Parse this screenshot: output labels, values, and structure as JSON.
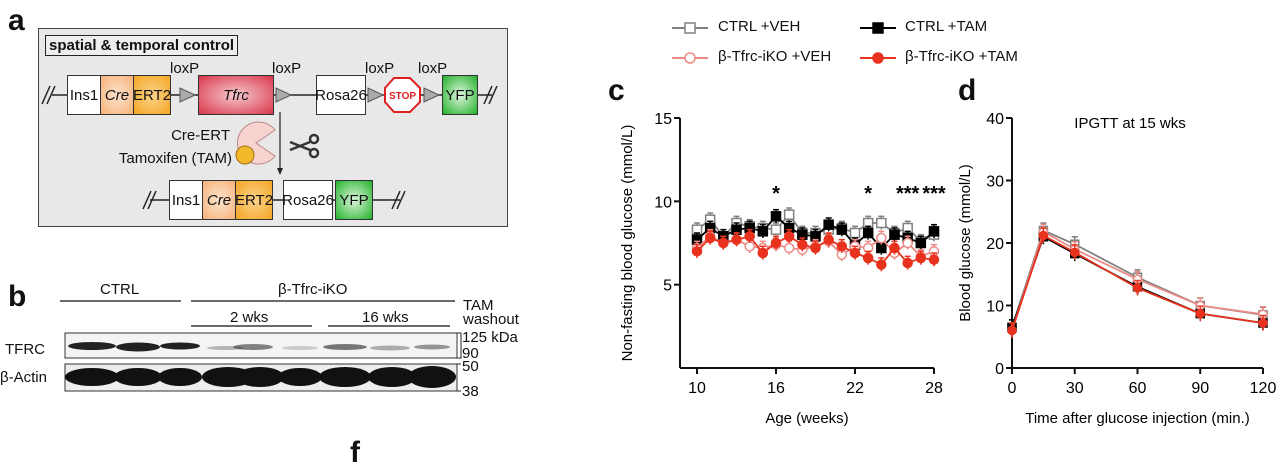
{
  "panel_labels": {
    "a": "a",
    "b": "b",
    "c": "c",
    "d": "d",
    "f": "f"
  },
  "panel_a": {
    "title": "spatial & temporal control",
    "loxp": "loxP",
    "ins1": "Ins1",
    "cre": "Cre",
    "ert2": "ERT2",
    "tfrc": "Tfrc",
    "rosa26": "Rosa26",
    "stop": "STOP",
    "yfp": "YFP",
    "cre_ert": "Cre-ERT",
    "tamoxifen": "Tamoxifen (TAM)",
    "colors": {
      "background": "#e8e8e8",
      "cre": "#f6b27a",
      "ert2": "#f5a623",
      "tfrc": "#d9364a",
      "stop": "#e02020",
      "yfp": "#22b22a",
      "enzyme": "#f7d3cf",
      "tamoxifen": "#f4b82c"
    }
  },
  "panel_b": {
    "ctrl": "CTRL",
    "ko": "β-Tfrc-iKO",
    "tam_washout_1": "TAM",
    "tam_washout_2": "washout",
    "wk2": "2 wks",
    "wk16": "16 wks",
    "row1": "TFRC",
    "row2": "β-Actin",
    "mw": [
      "125 kDa",
      "90",
      "50",
      "38"
    ]
  },
  "legend": [
    {
      "label": "CTRL +VEH",
      "color": "#808080",
      "marker": "open-square"
    },
    {
      "label": "CTRL +TAM",
      "color": "#000000",
      "marker": "filled-square"
    },
    {
      "label": "β-Tfrc-iKO +VEH",
      "color": "#ec8a86",
      "marker": "open-circle"
    },
    {
      "label": "β-Tfrc-iKO +TAM",
      "color": "#e8321e",
      "marker": "filled-circle"
    }
  ],
  "chart_data": [
    {
      "type": "line",
      "panel": "c",
      "xlabel": "Age (weeks)",
      "ylabel": "Non-fasting blood glucose (mmol/L)",
      "xlim": [
        10,
        28
      ],
      "ylim": [
        0,
        15
      ],
      "xticks": [
        "10",
        "16",
        "22",
        "28"
      ],
      "yticks": [
        "5",
        "10",
        "15"
      ],
      "x": [
        10,
        11,
        12,
        13,
        14,
        15,
        16,
        17,
        18,
        19,
        20,
        21,
        22,
        23,
        24,
        25,
        26,
        27,
        28
      ],
      "series": [
        {
          "name": "CTRL +VEH",
          "values": [
            8.3,
            8.9,
            7.9,
            8.7,
            8.5,
            8.4,
            8.3,
            9.2,
            8.1,
            8.1,
            8.3,
            8.4,
            8.1,
            8.7,
            8.7,
            8.1,
            8.4,
            7.6,
            8.0
          ]
        },
        {
          "name": "CTRL +TAM",
          "values": [
            7.7,
            8.4,
            7.9,
            8.3,
            8.4,
            8.2,
            9.1,
            8.4,
            8.0,
            7.9,
            8.6,
            8.3,
            7.4,
            8.1,
            7.2,
            8.0,
            7.8,
            7.5,
            8.2
          ]
        },
        {
          "name": "β-Tfrc-iKO +VEH",
          "values": [
            7.2,
            7.9,
            7.5,
            7.7,
            7.3,
            7.2,
            7.4,
            7.2,
            7.1,
            7.3,
            7.6,
            6.8,
            7.3,
            7.2,
            7.8,
            6.9,
            7.5,
            6.7,
            7.0
          ]
        },
        {
          "name": "β-Tfrc-iKO +TAM",
          "values": [
            7.0,
            7.8,
            7.5,
            7.7,
            7.9,
            6.9,
            7.5,
            7.9,
            7.4,
            7.2,
            7.7,
            7.3,
            6.9,
            6.6,
            6.2,
            7.2,
            6.3,
            6.6,
            6.5
          ]
        }
      ],
      "annotations": [
        {
          "x": 16,
          "text": "*"
        },
        {
          "x": 23,
          "text": "*"
        },
        {
          "x": 26,
          "text": "***"
        },
        {
          "x": 28,
          "text": "***"
        }
      ]
    },
    {
      "type": "line",
      "panel": "d",
      "title": "IPGTT at 15 wks",
      "xlabel": "Time after glucose injection (min.)",
      "ylabel": "Blood glucose (mmol/L)",
      "xlim": [
        0,
        120
      ],
      "ylim": [
        0,
        40
      ],
      "xticks": [
        "0",
        "30",
        "60",
        "90",
        "120"
      ],
      "yticks": [
        "0",
        "10",
        "20",
        "30",
        "40"
      ],
      "x": [
        0,
        15,
        30,
        60,
        90,
        120
      ],
      "series": [
        {
          "name": "CTRL +VEH",
          "values": [
            6.5,
            22.0,
            19.8,
            14.5,
            10.0,
            8.5
          ]
        },
        {
          "name": "CTRL +TAM",
          "values": [
            6.5,
            21.0,
            18.3,
            13.0,
            8.7,
            7.2
          ]
        },
        {
          "name": "β-Tfrc-iKO +VEH",
          "values": [
            6.0,
            21.8,
            19.0,
            14.2,
            10.0,
            8.6
          ]
        },
        {
          "name": "β-Tfrc-iKO +TAM",
          "values": [
            6.0,
            21.2,
            18.5,
            12.8,
            8.7,
            7.2
          ]
        }
      ]
    }
  ]
}
